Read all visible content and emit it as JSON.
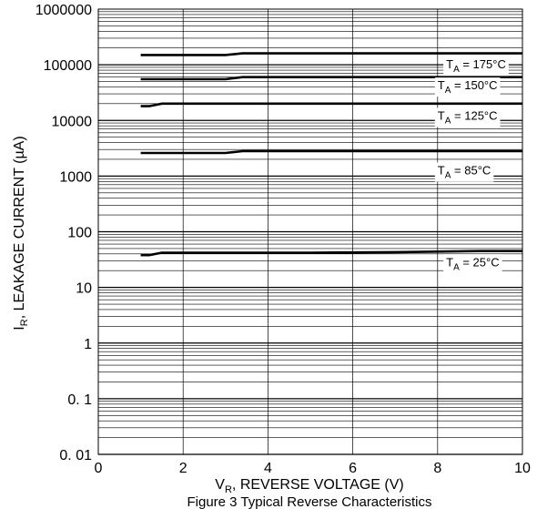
{
  "chart_data": {
    "type": "line",
    "title": "",
    "caption": "Figure 3 Typical Reverse Characteristics",
    "xlabel": {
      "main": "V",
      "sub": "R",
      "rest": ", REVERSE VOLTAGE (V)"
    },
    "ylabel": {
      "main": "I",
      "sub": "R",
      "rest": ", LEAKAGE CURRENT (µA)"
    },
    "xlim": [
      0,
      10
    ],
    "ylim": [
      0.01,
      1000000
    ],
    "yscale": "log",
    "grid": true,
    "x_ticks": [
      "0",
      "2",
      "4",
      "6",
      "8",
      "10"
    ],
    "y_ticks": [
      "0. 01",
      "0. 1",
      "1",
      "10",
      "100",
      "1000",
      "10000",
      "100000",
      "1000000"
    ],
    "series": [
      {
        "name": "T_A = 175°C",
        "label_main": "T",
        "label_sub": "A",
        "label_rest": " = 175°C",
        "label_x": 8.2,
        "label_y": 100000,
        "x": [
          1,
          2,
          3,
          3.4,
          5,
          10
        ],
        "y": [
          150000,
          150000,
          150000,
          160000,
          160000,
          160000
        ]
      },
      {
        "name": "T_A = 150°C",
        "label_main": "T",
        "label_sub": "A",
        "label_rest": " = 150°C",
        "label_x": 8.0,
        "label_y": 42000,
        "x": [
          1,
          2,
          3,
          3.4,
          5,
          10
        ],
        "y": [
          55000,
          55000,
          55000,
          60000,
          60000,
          60000
        ]
      },
      {
        "name": "T_A = 125°C",
        "label_main": "T",
        "label_sub": "A",
        "label_rest": " = 125°C",
        "label_x": 8.0,
        "label_y": 12000,
        "x": [
          1,
          1.2,
          1.5,
          3,
          5,
          10
        ],
        "y": [
          18000,
          18000,
          20000,
          20000,
          20000,
          20000
        ]
      },
      {
        "name": "T_A = 85°C",
        "label_main": "T",
        "label_sub": "A",
        "label_rest": " = 85°C",
        "label_x": 8.0,
        "label_y": 1250,
        "x": [
          1,
          2,
          3,
          3.4,
          5,
          10
        ],
        "y": [
          2600,
          2600,
          2600,
          2800,
          2800,
          2800
        ]
      },
      {
        "name": "T_A = 25°C",
        "label_main": "T",
        "label_sub": "A",
        "label_rest": " = 25°C",
        "label_x": 8.2,
        "label_y": 28,
        "x": [
          1,
          1.2,
          1.5,
          3,
          5,
          7,
          9,
          10
        ],
        "y": [
          38,
          38,
          42,
          42,
          42,
          43,
          45,
          45
        ]
      }
    ]
  }
}
